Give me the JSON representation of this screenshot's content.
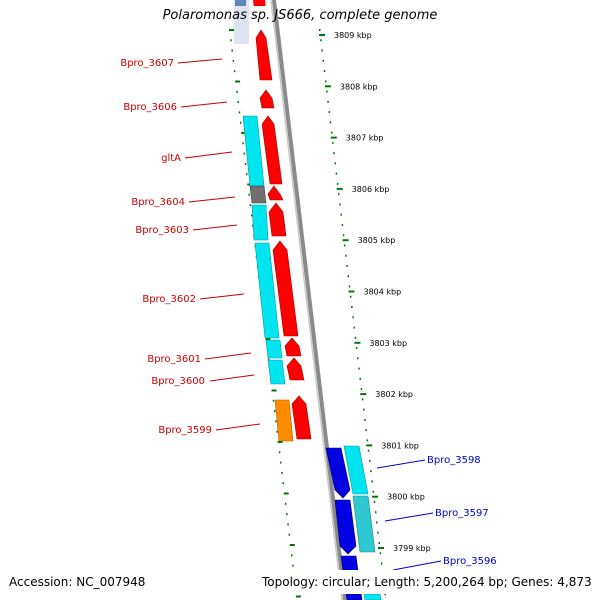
{
  "title": "Polaromonas sp. JS666, complete genome",
  "footer": {
    "accession": "Accession: NC_007948",
    "topology": "Topology: circular; Length: 5,200,264 bp; Genes: 4,873"
  },
  "colors": {
    "forward_cds": "#ff0000",
    "cds_cyan": "#00e5f0",
    "reverse_cds": "#0000e0",
    "rna_gene": "#ff8c00",
    "pseudo_gene": "#707070",
    "label_left": "#cc0000",
    "label_right": "#0000cc",
    "tick_green": "#007700",
    "backbone": "#808080"
  },
  "scale_labels": [
    "3809 kbp",
    "3808 kbp",
    "3807 kbp",
    "3806 kbp",
    "3805 kbp",
    "3804 kbp",
    "3803 kbp",
    "3802 kbp",
    "3801 kbp",
    "3800 kbp",
    "3799 kbp"
  ],
  "genes_left": [
    {
      "label": "Bpro_3607"
    },
    {
      "label": "Bpro_3606"
    },
    {
      "label": "gltA"
    },
    {
      "label": "Bpro_3604"
    },
    {
      "label": "Bpro_3603"
    },
    {
      "label": "Bpro_3602"
    },
    {
      "label": "Bpro_3601"
    },
    {
      "label": "Bpro_3600"
    },
    {
      "label": "Bpro_3599"
    }
  ],
  "genes_right": [
    {
      "label": "Bpro_3598"
    },
    {
      "label": "Bpro_3597"
    },
    {
      "label": "Bpro_3596"
    }
  ]
}
